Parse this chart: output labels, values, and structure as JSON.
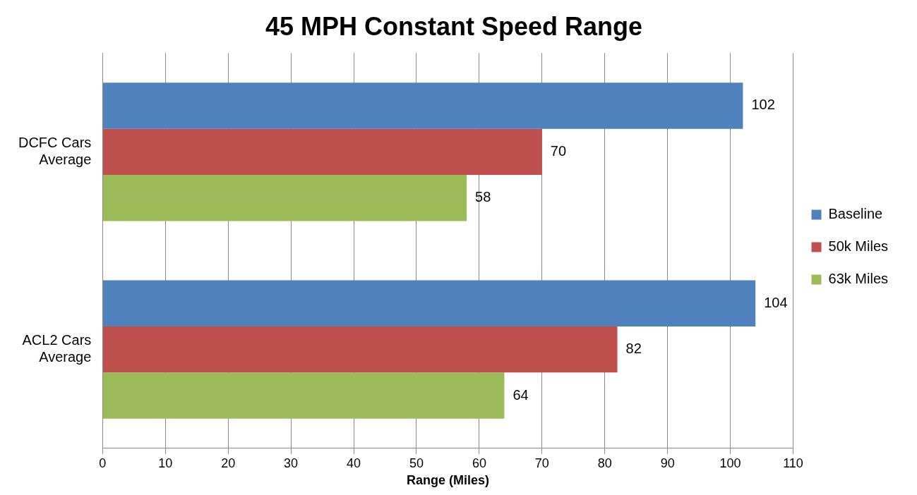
{
  "chart_data": {
    "type": "bar",
    "orientation": "horizontal",
    "title": "45 MPH Constant Speed Range",
    "xlabel": "Range (Miles)",
    "categories": [
      "DCFC Cars Average",
      "ACL2 Cars Average"
    ],
    "series": [
      {
        "name": "Baseline",
        "color": "#4f81bd",
        "values": [
          102,
          104
        ]
      },
      {
        "name": "50k Miles",
        "color": "#c0504d",
        "values": [
          70,
          82
        ]
      },
      {
        "name": "63k Miles",
        "color": "#9bbb59",
        "values": [
          58,
          64
        ]
      }
    ],
    "xlim": [
      0,
      110
    ],
    "xticks": [
      0,
      10,
      20,
      30,
      40,
      50,
      60,
      70,
      80,
      90,
      100,
      110
    ],
    "grid": "x",
    "legend": "right",
    "data_labels": true
  }
}
